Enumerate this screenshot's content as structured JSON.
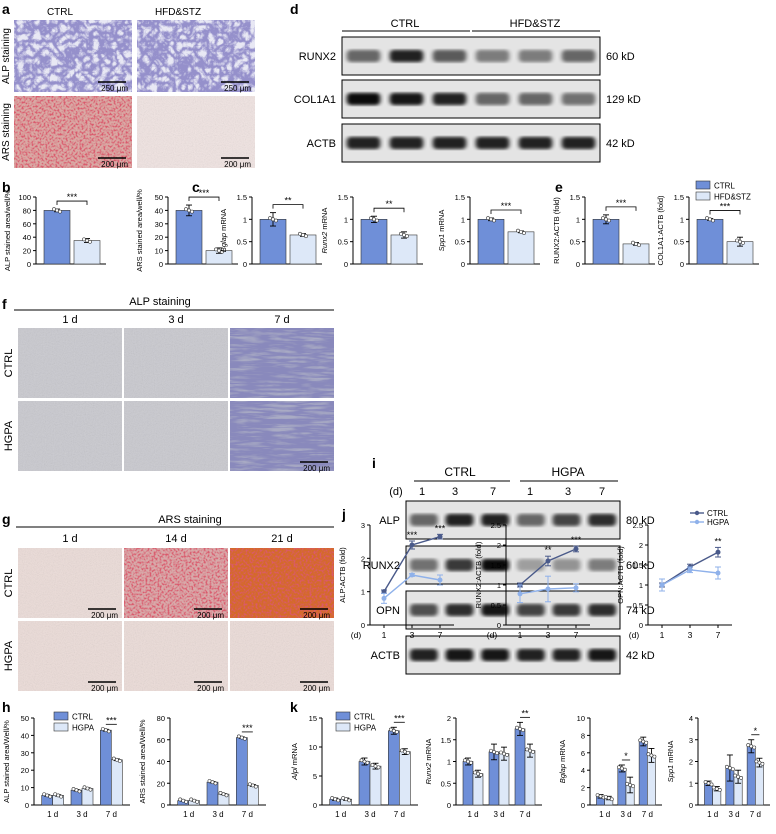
{
  "colors": {
    "ctrl": "#6f8fd8",
    "treated": "#dde8f8",
    "line_ctrl": "#4a5a8a",
    "line_hgpa": "#8fb1ea"
  },
  "panels": {
    "a": {
      "letter": "a",
      "cols": [
        "CTRL",
        "HFD&STZ"
      ],
      "rows": [
        "ALP staining",
        "ARS staining"
      ],
      "scales": [
        "250 μm",
        "250 μm",
        "200 μm",
        "200 μm"
      ]
    },
    "d": {
      "letter": "d",
      "groups": [
        "CTRL",
        "HFD&STZ"
      ],
      "bands": [
        {
          "name": "RUNX2",
          "size": "60 kD"
        },
        {
          "name": "COL1A1",
          "size": "129 kD"
        },
        {
          "name": "ACTB",
          "size": "42 kD"
        }
      ]
    },
    "b": {
      "letter": "b"
    },
    "c": {
      "letter": "c"
    },
    "e": {
      "letter": "e"
    },
    "f": {
      "letter": "f",
      "title": "ALP staining",
      "cols": [
        "1 d",
        "3 d",
        "7 d"
      ],
      "rows": [
        "CTRL",
        "HGPA"
      ],
      "scale": "200 μm"
    },
    "i": {
      "letter": "i",
      "groups": [
        "CTRL",
        "HGPA"
      ],
      "d_label": "(d)",
      "days": [
        "1",
        "3",
        "7",
        "1",
        "3",
        "7"
      ],
      "bands": [
        {
          "name": "ALP",
          "size": "80 kD"
        },
        {
          "name": "RUNX2",
          "size": "60 kD"
        },
        {
          "name": "OPN",
          "size": "74 kD"
        },
        {
          "name": "ACTB",
          "size": "42 kD"
        }
      ]
    },
    "g": {
      "letter": "g",
      "title": "ARS staining",
      "cols": [
        "1 d",
        "14 d",
        "21 d"
      ],
      "rows": [
        "CTRL",
        "HGPA"
      ],
      "scale": "200 μm"
    },
    "j": {
      "letter": "j"
    },
    "h": {
      "letter": "h"
    },
    "k": {
      "letter": "k"
    }
  },
  "chart_data": [
    {
      "id": "b1",
      "type": "bar",
      "ylabel": "ALP stained area/well/%",
      "categories": [
        "CTRL",
        "HFD&STZ"
      ],
      "values": [
        80,
        35
      ],
      "errors": [
        2,
        3
      ],
      "ylim": [
        0,
        100
      ],
      "yticks": [
        0,
        20,
        40,
        60,
        80,
        100
      ],
      "sig": "***"
    },
    {
      "id": "b2",
      "type": "bar",
      "ylabel": "ARS stained area/well/%",
      "categories": [
        "CTRL",
        "HFD&STZ"
      ],
      "values": [
        40,
        10
      ],
      "errors": [
        4,
        2
      ],
      "ylim": [
        0,
        50
      ],
      "yticks": [
        0,
        10,
        20,
        30,
        40,
        50
      ],
      "sig": "***"
    },
    {
      "id": "c1",
      "type": "bar",
      "ylabel": "Bglap mRNA",
      "categories": [
        "CTRL",
        "HFD&STZ"
      ],
      "values": [
        1.0,
        0.65
      ],
      "errors": [
        0.15,
        0.03
      ],
      "ylim": [
        0,
        1.5
      ],
      "yticks": [
        0,
        0.5,
        1.0,
        1.5
      ],
      "sig": "**"
    },
    {
      "id": "c2",
      "type": "bar",
      "ylabel": "Runx2 mRNA",
      "categories": [
        "CTRL",
        "HFD&STZ"
      ],
      "values": [
        1.0,
        0.65
      ],
      "errors": [
        0.07,
        0.07
      ],
      "ylim": [
        0,
        1.5
      ],
      "yticks": [
        0,
        0.5,
        1.0,
        1.5
      ],
      "sig": "**"
    },
    {
      "id": "c3",
      "type": "bar",
      "ylabel": "Spp1 mRNA",
      "categories": [
        "CTRL",
        "HFD&STZ"
      ],
      "values": [
        1.0,
        0.72
      ],
      "errors": [
        0.03,
        0.02
      ],
      "ylim": [
        0,
        1.5
      ],
      "yticks": [
        0,
        0.5,
        1.0,
        1.5
      ],
      "sig": "***"
    },
    {
      "id": "e1",
      "type": "bar",
      "ylabel": "RUNX2:ACTB (fold)",
      "categories": [
        "CTRL",
        "HFD&STZ"
      ],
      "values": [
        1.0,
        0.45
      ],
      "errors": [
        0.1,
        0.03
      ],
      "ylim": [
        0,
        1.5
      ],
      "yticks": [
        0,
        0.5,
        1.0,
        1.5
      ],
      "sig": "***"
    },
    {
      "id": "e2",
      "type": "bar",
      "ylabel": "COL1A1:ACTB (fold)",
      "categories": [
        "CTRL",
        "HFD&STZ"
      ],
      "values": [
        1.0,
        0.5
      ],
      "errors": [
        0.02,
        0.1
      ],
      "ylim": [
        0,
        1.5
      ],
      "yticks": [
        0,
        0.5,
        1.0,
        1.5
      ],
      "sig": "***"
    },
    {
      "id": "j1",
      "type": "line",
      "ylabel": "ALP:ACTB (fold)",
      "x": [
        "1",
        "3",
        "7"
      ],
      "xprefix": "(d)",
      "ylim": [
        0,
        3
      ],
      "yticks": [
        0,
        1,
        2,
        3
      ],
      "series": [
        {
          "name": "CTRL",
          "values": [
            1.0,
            2.4,
            2.65
          ],
          "errors": [
            0.05,
            0.12,
            0.07
          ]
        },
        {
          "name": "HGPA",
          "values": [
            0.8,
            1.5,
            1.35
          ],
          "errors": [
            0.15,
            0.04,
            0.15
          ]
        }
      ],
      "sig": [
        "",
        "***",
        "***"
      ]
    },
    {
      "id": "j2",
      "type": "line",
      "ylabel": "RUNX2:ACTB (fold)",
      "x": [
        "1",
        "3",
        "7"
      ],
      "xprefix": "(d)",
      "ylim": [
        0,
        2.5
      ],
      "yticks": [
        0,
        0.5,
        1.0,
        1.5,
        2.0,
        2.5
      ],
      "series": [
        {
          "name": "CTRL",
          "values": [
            1.0,
            1.6,
            1.9
          ],
          "errors": [
            0.05,
            0.12,
            0.07
          ]
        },
        {
          "name": "HGPA",
          "values": [
            0.78,
            0.9,
            0.93
          ],
          "errors": [
            0.22,
            0.32,
            0.1
          ]
        }
      ],
      "sig": [
        "",
        "**",
        "***"
      ]
    },
    {
      "id": "j3",
      "type": "line",
      "ylabel": "OPN:ACTB (fold)",
      "x": [
        "1",
        "3",
        "7"
      ],
      "xprefix": "(d)",
      "ylim": [
        0,
        2.5
      ],
      "yticks": [
        0,
        0.5,
        1.0,
        1.5,
        2.0,
        2.5
      ],
      "series": [
        {
          "name": "CTRL",
          "values": [
            1.0,
            1.45,
            1.82
          ],
          "errors": [
            0.05,
            0.07,
            0.12
          ]
        },
        {
          "name": "HGPA",
          "values": [
            1.0,
            1.38,
            1.3
          ],
          "errors": [
            0.15,
            0.07,
            0.15
          ]
        }
      ],
      "sig": [
        "",
        "",
        "**"
      ]
    },
    {
      "id": "h1",
      "type": "bar",
      "ylabel": "ALP stained area/Well/%",
      "categories": [
        "1 d",
        "3 d",
        "7 d"
      ],
      "ylim": [
        0,
        50
      ],
      "yticks": [
        0,
        10,
        20,
        30,
        40,
        50
      ],
      "series": [
        {
          "name": "CTRL",
          "values": [
            5.5,
            8.5,
            43
          ],
          "errors": [
            0.4,
            0.4,
            0.5
          ]
        },
        {
          "name": "HGPA",
          "values": [
            5.5,
            9.5,
            26
          ],
          "errors": [
            0.4,
            0.4,
            0.5
          ]
        }
      ],
      "sig": [
        "",
        "",
        "***"
      ]
    },
    {
      "id": "h2",
      "type": "bar",
      "ylabel": "ARS stained area/Well/%",
      "categories": [
        "1 d",
        "3 d",
        "7 d"
      ],
      "ylim": [
        0,
        80
      ],
      "yticks": [
        0,
        20,
        40,
        60,
        80
      ],
      "series": [
        {
          "name": "CTRL",
          "values": [
            4,
            21,
            62
          ],
          "errors": [
            0.4,
            0.6,
            0.6
          ]
        },
        {
          "name": "HGPA",
          "values": [
            4,
            10,
            18
          ],
          "errors": [
            0.4,
            0.5,
            0.8
          ]
        }
      ],
      "sig": [
        "",
        "",
        "***"
      ]
    },
    {
      "id": "k1",
      "type": "bar",
      "ylabel": "Alpl mRNA",
      "categories": [
        "1 d",
        "3 d",
        "7 d"
      ],
      "ylim": [
        0,
        15
      ],
      "yticks": [
        0,
        5,
        10,
        15
      ],
      "series": [
        {
          "name": "CTRL",
          "values": [
            1,
            7.5,
            12.8
          ],
          "errors": [
            0.2,
            0.6,
            0.6
          ]
        },
        {
          "name": "HGPA",
          "values": [
            1,
            6.7,
            9.2
          ],
          "errors": [
            0.2,
            0.5,
            0.5
          ]
        }
      ],
      "sig": [
        "",
        "",
        "***"
      ]
    },
    {
      "id": "k2",
      "type": "bar",
      "ylabel": "Runx2 mRNA",
      "categories": [
        "1 d",
        "3 d",
        "7 d"
      ],
      "ylim": [
        0,
        2.0
      ],
      "yticks": [
        0,
        0.5,
        1.0,
        1.5,
        2.0
      ],
      "series": [
        {
          "name": "CTRL",
          "values": [
            1.0,
            1.22,
            1.75
          ],
          "errors": [
            0.08,
            0.18,
            0.15
          ]
        },
        {
          "name": "HGPA",
          "values": [
            0.72,
            1.18,
            1.25
          ],
          "errors": [
            0.08,
            0.15,
            0.15
          ]
        }
      ],
      "sig": [
        "",
        "",
        "**"
      ]
    },
    {
      "id": "k3",
      "type": "bar",
      "ylabel": "Bglap mRNA",
      "categories": [
        "1 d",
        "3 d",
        "7 d"
      ],
      "ylim": [
        0,
        10
      ],
      "yticks": [
        0,
        2,
        4,
        6,
        8,
        10
      ],
      "series": [
        {
          "name": "CTRL",
          "values": [
            1.0,
            4.2,
            7.3
          ],
          "errors": [
            0.2,
            0.4,
            0.5
          ]
        },
        {
          "name": "HGPA",
          "values": [
            0.8,
            2.3,
            5.7
          ],
          "errors": [
            0.2,
            0.9,
            0.8
          ]
        }
      ],
      "sig": [
        "",
        "*",
        ""
      ]
    },
    {
      "id": "k4",
      "type": "bar",
      "ylabel": "Spp1 mRNA",
      "categories": [
        "1 d",
        "3 d",
        "7 d"
      ],
      "ylim": [
        0,
        4
      ],
      "yticks": [
        0,
        1,
        2,
        3,
        4
      ],
      "series": [
        {
          "name": "CTRL",
          "values": [
            1.0,
            1.7,
            2.7
          ],
          "errors": [
            0.1,
            0.6,
            0.3
          ]
        },
        {
          "name": "HGPA",
          "values": [
            0.75,
            1.3,
            1.95
          ],
          "errors": [
            0.1,
            0.3,
            0.2
          ]
        }
      ],
      "sig": [
        "",
        "",
        "*"
      ]
    }
  ],
  "legends": {
    "e": [
      "CTRL",
      "HFD&STZ"
    ],
    "j": [
      "CTRL",
      "HGPA"
    ],
    "h": [
      "CTRL",
      "HGPA"
    ],
    "k": [
      "CTRL",
      "HGPA"
    ]
  }
}
